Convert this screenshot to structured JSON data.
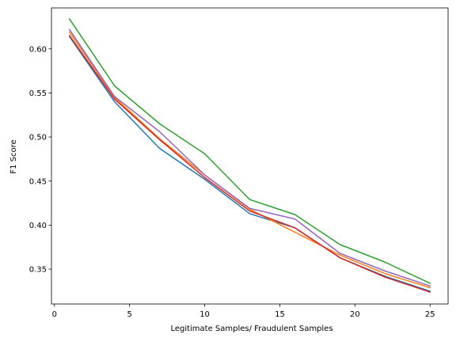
{
  "chart_data": {
    "type": "line",
    "xlabel": "Legitimate Samples/ Fraudulent Samples",
    "ylabel": "F1 Score",
    "xlim": [
      -0.2,
      26.2
    ],
    "ylim": [
      0.3105,
      0.6465
    ],
    "xticks": [
      0,
      5,
      10,
      15,
      20,
      25
    ],
    "xtick_labels": [
      "0",
      "5",
      "10",
      "15",
      "20",
      "25"
    ],
    "yticks": [
      0.35,
      0.4,
      0.45,
      0.5,
      0.55,
      0.6
    ],
    "ytick_labels": [
      "0.35",
      "0.40",
      "0.45",
      "0.50",
      "0.55",
      "0.60"
    ],
    "grid": false,
    "x": [
      1,
      4,
      7,
      10,
      13,
      16,
      19,
      22,
      25
    ],
    "series": [
      {
        "color": "#1f77b4",
        "values": [
          0.614,
          0.54,
          0.487,
          0.452,
          0.413,
          0.397,
          0.363,
          0.342,
          0.325
        ]
      },
      {
        "color": "#ff7f0e",
        "values": [
          0.619,
          0.545,
          0.498,
          0.457,
          0.418,
          0.392,
          0.366,
          0.345,
          0.329
        ]
      },
      {
        "color": "#2ca02c",
        "values": [
          0.634,
          0.558,
          0.515,
          0.481,
          0.429,
          0.412,
          0.378,
          0.358,
          0.334
        ]
      },
      {
        "color": "#d62728",
        "values": [
          0.615,
          0.543,
          0.497,
          0.454,
          0.416,
          0.397,
          0.363,
          0.341,
          0.324
        ]
      },
      {
        "color": "#9467bd",
        "values": [
          0.622,
          0.546,
          0.506,
          0.457,
          0.419,
          0.407,
          0.368,
          0.348,
          0.331
        ]
      }
    ]
  }
}
